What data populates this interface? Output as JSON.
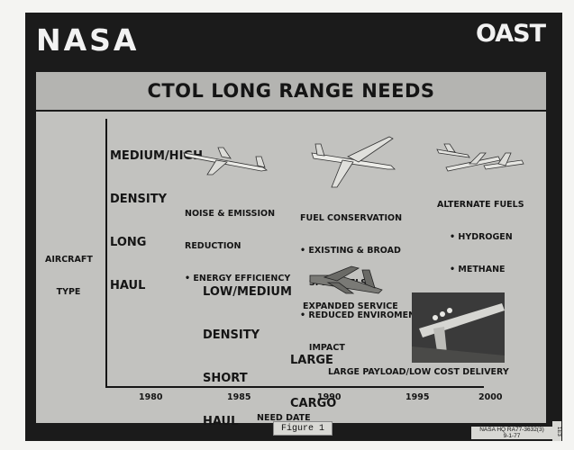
{
  "header": {
    "logo_left": "NASA",
    "logo_right": "OAST"
  },
  "title": "CTOL LONG RANGE NEEDS",
  "y_axis_label": [
    "AIRCRAFT",
    "TYPE"
  ],
  "x_axis_label": "NEED DATE",
  "x_ticks": [
    "1980",
    "1985",
    "1990",
    "1995",
    "2000"
  ],
  "categories": {
    "medium_high": [
      "MEDIUM/HIGH",
      "DENSITY",
      "LONG",
      "HAUL"
    ],
    "low_medium": [
      "LOW/MEDIUM",
      "DENSITY",
      "SHORT",
      "HAUL"
    ],
    "large_cargo": [
      "LARGE",
      "CARGO"
    ]
  },
  "needs": {
    "noise": [
      "NOISE & EMISSION",
      "REDUCTION",
      "• ENERGY EFFICIENCY"
    ],
    "fuel": [
      "FUEL CONSERVATION",
      "• EXISTING & BROAD",
      "   SPEC FUELS",
      "• REDUCED ENVIROMENTAL",
      "   IMPACT"
    ],
    "alt_fuels": [
      "ALTERNATE FUELS",
      "• HYDROGEN",
      "• METHANE"
    ],
    "expanded": "EXPANDED SERVICE",
    "payload": "LARGE PAYLOAD/LOW COST DELIVERY"
  },
  "figure_label": "Figure 1",
  "ref": {
    "line1": "NASA HQ RA77-3632(3)",
    "line2": "9-1-77",
    "side": "1E3"
  },
  "icons": [
    "jet-airliner-icon",
    "wide-body-jet-icon",
    "hydrogen-aircraft-icon",
    "cargo-plane-icon",
    "cargo-aircraft-photo"
  ]
}
